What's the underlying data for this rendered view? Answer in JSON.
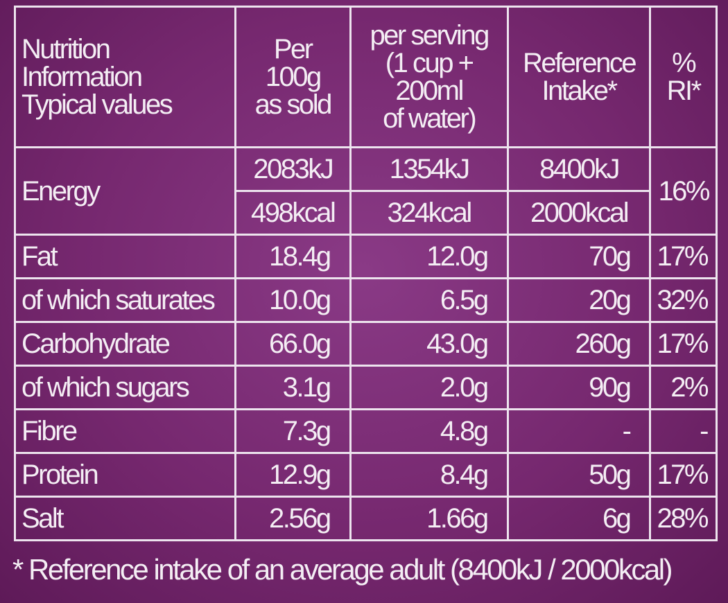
{
  "headers": {
    "col1": [
      "Nutrition",
      "Information",
      "Typical values"
    ],
    "col2": [
      "Per",
      "100g",
      "as sold"
    ],
    "col3": [
      "per serving",
      "(1 cup +",
      "200ml",
      "of water)"
    ],
    "col4": [
      "Reference",
      "Intake*"
    ],
    "col5": [
      "%",
      "RI*"
    ]
  },
  "energy": {
    "label": "Energy",
    "kj": [
      "2083kJ",
      "1354kJ",
      "8400kJ"
    ],
    "kcal": [
      "498kcal",
      "324kcal",
      "2000kcal"
    ],
    "ri": "16%"
  },
  "rows": [
    {
      "label": "Fat",
      "per100": "18.4g",
      "serving": "12.0g",
      "ref": "70g",
      "ri": "17%"
    },
    {
      "label": "of which saturates",
      "per100": "10.0g",
      "serving": "6.5g",
      "ref": "20g",
      "ri": "32%"
    },
    {
      "label": "Carbohydrate",
      "per100": "66.0g",
      "serving": "43.0g",
      "ref": "260g",
      "ri": "17%"
    },
    {
      "label": "of which sugars",
      "per100": "3.1g",
      "serving": "2.0g",
      "ref": "90g",
      "ri": "2%"
    },
    {
      "label": "Fibre",
      "per100": "7.3g",
      "serving": "4.8g",
      "ref": "-",
      "ri": "-"
    },
    {
      "label": "Protein",
      "per100": "12.9g",
      "serving": "8.4g",
      "ref": "50g",
      "ri": "17%"
    },
    {
      "label": "Salt",
      "per100": "2.56g",
      "serving": "1.66g",
      "ref": "6g",
      "ri": "28%"
    }
  ],
  "footnote": "* Reference intake of an average adult (8400kJ / 2000kcal)",
  "colors": {
    "background": "#76286f",
    "text": "#f4eef4"
  }
}
